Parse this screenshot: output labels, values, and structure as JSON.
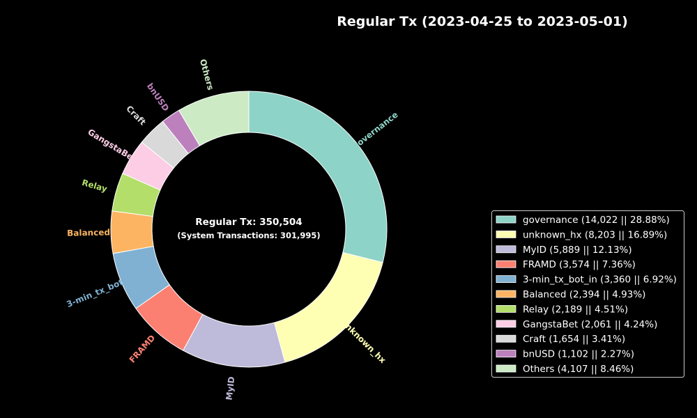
{
  "chart_data": {
    "type": "pie",
    "title": "Regular Tx (2023-04-25 to 2023-05-01)",
    "center_text": {
      "main": "Regular Tx: 350,504",
      "sub": "(System Transactions: 301,995)"
    },
    "donut": true,
    "legend_position": "right",
    "slices": [
      {
        "label": "governance",
        "value": 14022,
        "percent": 28.88,
        "color": "#8dd3c7",
        "legend": "governance (14,022 || 28.88%)"
      },
      {
        "label": "unknown_hx",
        "value": 8203,
        "percent": 16.89,
        "color": "#ffffb3",
        "legend": "unknown_hx (8,203 || 16.89%)"
      },
      {
        "label": "MyID",
        "value": 5889,
        "percent": 12.13,
        "color": "#bebada",
        "legend": "MyID (5,889 || 12.13%)"
      },
      {
        "label": "FRAMD",
        "value": 3574,
        "percent": 7.36,
        "color": "#fb8072",
        "legend": "FRAMD (3,574 || 7.36%)"
      },
      {
        "label": "3-min_tx_bot_in",
        "value": 3360,
        "percent": 6.92,
        "color": "#80b1d3",
        "legend": "3-min_tx_bot_in (3,360 || 6.92%)"
      },
      {
        "label": "Balanced",
        "value": 2394,
        "percent": 4.93,
        "color": "#fdb462",
        "legend": "Balanced (2,394 || 4.93%)"
      },
      {
        "label": "Relay",
        "value": 2189,
        "percent": 4.51,
        "color": "#b3de69",
        "legend": "Relay (2,189 || 4.51%)"
      },
      {
        "label": "GangstaBet",
        "value": 2061,
        "percent": 4.24,
        "color": "#fccde5",
        "legend": "GangstaBet (2,061 || 4.24%)"
      },
      {
        "label": "Craft",
        "value": 1654,
        "percent": 3.41,
        "color": "#d9d9d9",
        "legend": "Craft (1,654 || 3.41%)"
      },
      {
        "label": "bnUSD",
        "value": 1102,
        "percent": 2.27,
        "color": "#bc80bd",
        "legend": "bnUSD (1,102 || 2.27%)"
      },
      {
        "label": "Others",
        "value": 4107,
        "percent": 8.46,
        "color": "#ccebc5",
        "legend": "Others (4,107 || 8.46%)"
      }
    ]
  }
}
